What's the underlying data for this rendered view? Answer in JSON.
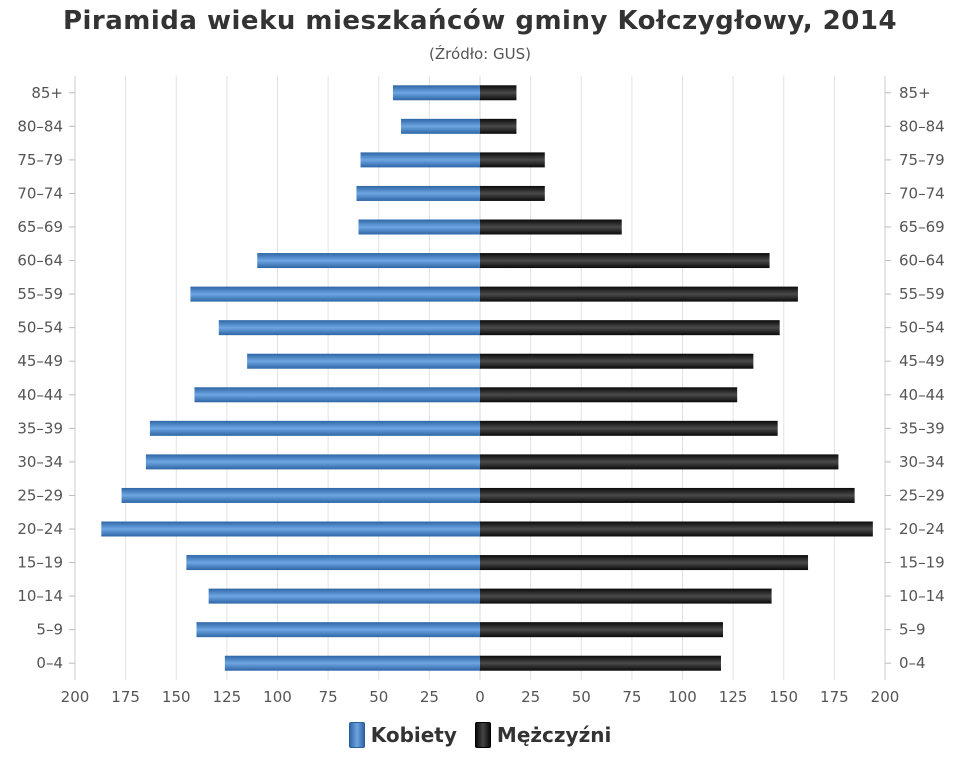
{
  "chart_data": {
    "type": "bar",
    "title": "Piramida wieku mieszkańców gminy Kołczygłowy, 2014",
    "subtitle": "(Źródło: GUS)",
    "categories": [
      "85+",
      "80–84",
      "75–79",
      "70–74",
      "65–69",
      "60–64",
      "55–59",
      "50–54",
      "45–49",
      "40–44",
      "35–39",
      "30–34",
      "25–29",
      "20–24",
      "15–19",
      "10–14",
      "5–9",
      "0–4"
    ],
    "series": [
      {
        "name": "Kobiety",
        "values": [
          43,
          39,
          59,
          61,
          60,
          110,
          143,
          129,
          115,
          141,
          163,
          165,
          177,
          187,
          145,
          134,
          140,
          126
        ]
      },
      {
        "name": "Mężczyźni",
        "values": [
          18,
          18,
          32,
          32,
          70,
          143,
          157,
          148,
          135,
          127,
          147,
          177,
          185,
          194,
          162,
          144,
          120,
          119
        ]
      }
    ],
    "xlim": [
      -200,
      200
    ],
    "x_ticks": [
      "200",
      "175",
      "150",
      "125",
      "100",
      "75",
      "50",
      "25",
      "0",
      "25",
      "50",
      "75",
      "100",
      "125",
      "150",
      "175",
      "200"
    ],
    "grid": true,
    "legend_position": "bottom",
    "colors": {
      "Kobiety": "#3f7cc4",
      "Mężczyźni": "#1a1a1a"
    }
  }
}
